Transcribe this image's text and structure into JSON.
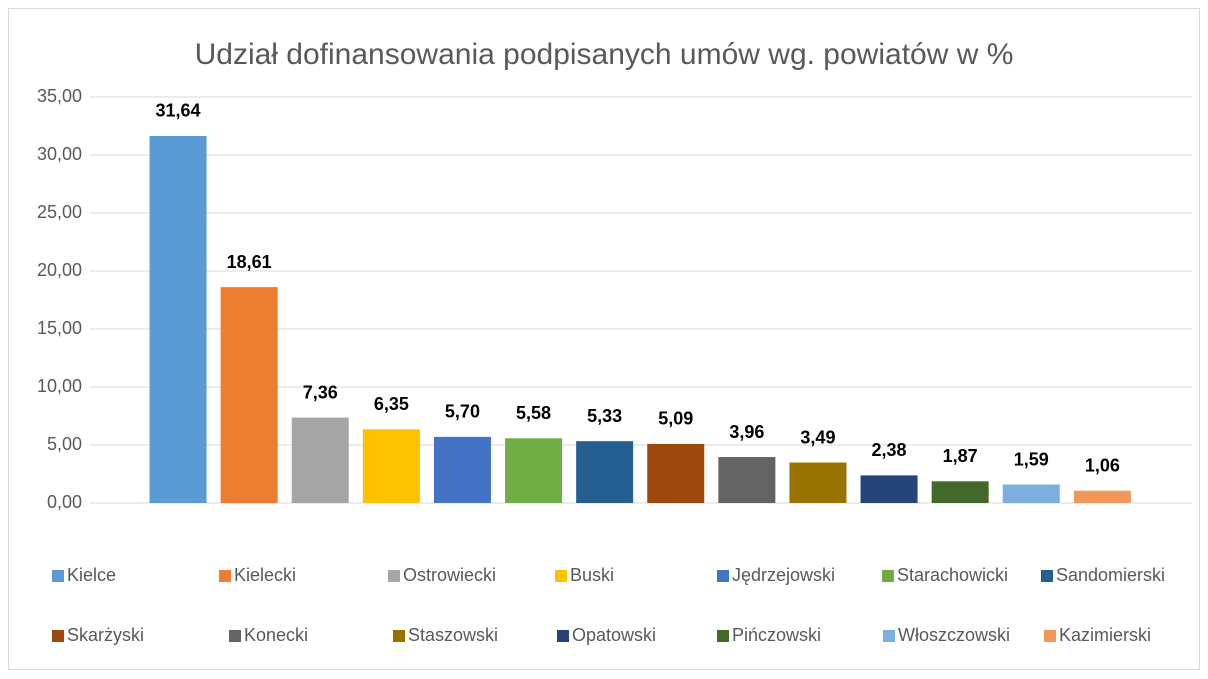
{
  "chart_data": {
    "type": "bar",
    "title": "Udział dofinansowania podpisanych umów wg. powiatów w %",
    "categories": [
      "Kielce",
      "Kielecki",
      "Ostrowiecki",
      "Buski",
      "Jędrzejowski",
      "Starachowicki",
      "Sandomierski",
      "Skarżyski",
      "Konecki",
      "Staszowski",
      "Opatowski",
      "Pińczowski",
      "Włoszczowski",
      "Kazimierski"
    ],
    "values": [
      31.64,
      18.61,
      7.36,
      6.35,
      5.7,
      5.58,
      5.33,
      5.09,
      3.96,
      3.49,
      2.38,
      1.87,
      1.59,
      1.06
    ],
    "value_labels": [
      "31,64",
      "18,61",
      "7,36",
      "6,35",
      "5,70",
      "5,58",
      "5,33",
      "5,09",
      "3,96",
      "3,49",
      "2,38",
      "1,87",
      "1,59",
      "1,06"
    ],
    "colors": [
      "#5b9bd5",
      "#ed7d31",
      "#a5a5a5",
      "#ffc000",
      "#4472c4",
      "#70ad47",
      "#255e91",
      "#9e480e",
      "#636363",
      "#997300",
      "#264478",
      "#43682b",
      "#7cafdd",
      "#f1975a"
    ],
    "ylim": [
      0,
      35
    ],
    "yticks": [
      {
        "value": 0,
        "label": "0,00"
      },
      {
        "value": 5,
        "label": "5,00"
      },
      {
        "value": 10,
        "label": "10,00"
      },
      {
        "value": 15,
        "label": "15,00"
      },
      {
        "value": 20,
        "label": "20,00"
      },
      {
        "value": 25,
        "label": "25,00"
      },
      {
        "value": 30,
        "label": "30,00"
      },
      {
        "value": 35,
        "label": "35,00"
      }
    ],
    "grid": true,
    "legend": "bottom"
  }
}
